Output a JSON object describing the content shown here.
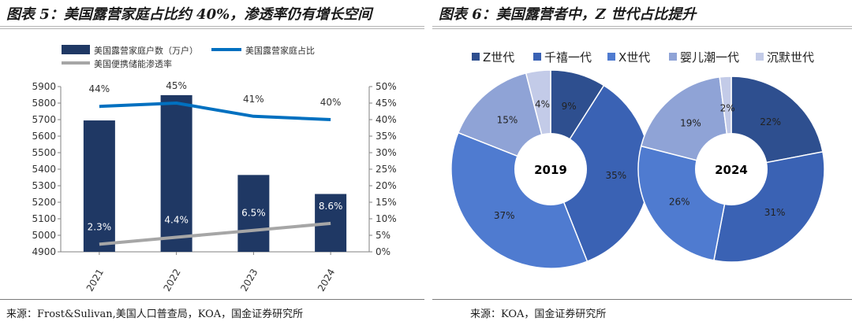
{
  "left_figure": {
    "title": "图表 5：美国露营家庭占比约 40%，渗透率仍有增长空间",
    "source": "来源：Frost&Sulivan,美国人口普查局，KOA，国金证券研究所"
  },
  "right_figure": {
    "title": "图表 6：美国露营者中，Z 世代占比提升",
    "source": "来源：KOA，国金证券研究所"
  },
  "chart_data": [
    {
      "type": "bar",
      "categories": [
        "2021",
        "2022",
        "2023",
        "2024"
      ],
      "series": [
        {
          "name": "美国露营家庭户数（万户）",
          "kind": "bar",
          "axis": "left",
          "values": [
            5695,
            5848,
            5365,
            5250
          ],
          "color": "#1f3864"
        },
        {
          "name": "美国露营家庭占比",
          "kind": "line",
          "axis": "right",
          "values": [
            44,
            45,
            41,
            40
          ],
          "labels": [
            "44%",
            "45%",
            "41%",
            "40%"
          ],
          "color": "#0070c0"
        },
        {
          "name": "美国便携储能渗透率",
          "kind": "line",
          "axis": "right",
          "values": [
            2.3,
            4.4,
            6.5,
            8.6
          ],
          "labels": [
            "2.3%",
            "4.4%",
            "6.5%",
            "8.6%"
          ],
          "color": "#a6a6a6"
        }
      ],
      "ylim_left": [
        4900,
        5900
      ],
      "yticks_left": [
        "4900",
        "5000",
        "5100",
        "5200",
        "5300",
        "5400",
        "5500",
        "5600",
        "5700",
        "5800",
        "5900"
      ],
      "ylim_right": [
        0,
        50
      ],
      "yticks_right": [
        "0%",
        "5%",
        "10%",
        "15%",
        "20%",
        "25%",
        "30%",
        "35%",
        "40%",
        "45%",
        "50%"
      ],
      "legend_position": "top-left",
      "grid": false
    },
    {
      "type": "pie",
      "legend": [
        {
          "name": "Z世代",
          "color": "#2e4f8f"
        },
        {
          "name": "千禧一代",
          "color": "#3a62b4"
        },
        {
          "name": "X世代",
          "color": "#4f7bd0"
        },
        {
          "name": "婴儿潮一代",
          "color": "#8fa3d6"
        },
        {
          "name": "沉默世代",
          "color": "#c3cbe8"
        }
      ],
      "legend_position": "top",
      "pies": [
        {
          "center_label": "2019",
          "values": [
            9,
            35,
            37,
            15,
            4
          ],
          "labels": [
            "9%",
            "35%",
            "37%",
            "15%",
            "4%"
          ]
        },
        {
          "center_label": "2024",
          "values": [
            22,
            31,
            26,
            19,
            2
          ],
          "labels": [
            "22%",
            "31%",
            "26%",
            "19%",
            "2%"
          ]
        }
      ]
    }
  ]
}
